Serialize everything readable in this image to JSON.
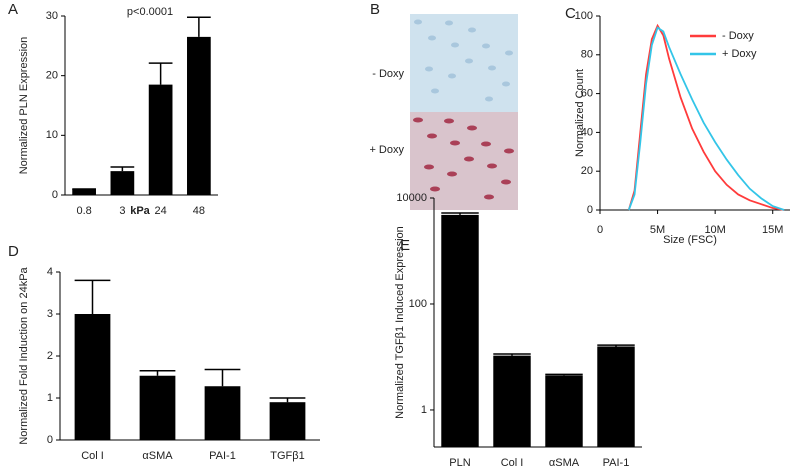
{
  "chart_data": [
    {
      "type": "bar",
      "label": "A",
      "annotation": "p<0.0001",
      "ylabel": "Normalized PLN Expression",
      "xlabel": "kPa",
      "categories": [
        "0.8",
        "3",
        "24",
        "48"
      ],
      "values": [
        1,
        4,
        18.5,
        26.5
      ],
      "errors": [
        0,
        0.7,
        3.6,
        3.3
      ],
      "color": "#000000",
      "ylim": [
        0,
        30
      ],
      "yticks": [
        0,
        10,
        20,
        30
      ]
    },
    {
      "type": "image",
      "label": "B",
      "rows": [
        "- Doxy",
        "+ Doxy"
      ]
    },
    {
      "type": "line",
      "label": "C",
      "xlabel": "Size (FSC)",
      "ylabel": "Normalized Count",
      "x": [
        2500000,
        3000000,
        3500000,
        4000000,
        4500000,
        5000000,
        5500000,
        6000000,
        7000000,
        8000000,
        9000000,
        10000000,
        11000000,
        12000000,
        13000000,
        14000000,
        15000000,
        16000000
      ],
      "series": [
        {
          "name": "- Doxy",
          "color": "#ff3b3b",
          "values": [
            0,
            10,
            40,
            70,
            88,
            95,
            90,
            78,
            58,
            42,
            30,
            20,
            13,
            8,
            5,
            3,
            1,
            0
          ]
        },
        {
          "name": "+ Doxy",
          "color": "#33c5e8",
          "values": [
            0,
            8,
            35,
            65,
            85,
            94,
            92,
            84,
            70,
            57,
            45,
            35,
            26,
            18,
            11,
            6,
            2,
            0
          ]
        }
      ],
      "xlim": [
        0,
        16500000
      ],
      "xticks": [
        0,
        {
          "value": 5000000,
          "label": "5M"
        },
        {
          "value": 10000000,
          "label": "10M"
        },
        {
          "value": 15000000,
          "label": "15M"
        }
      ],
      "ylim": [
        0,
        100
      ],
      "yticks": [
        0,
        20,
        40,
        60,
        80,
        100
      ],
      "legend": "upper-right"
    },
    {
      "type": "bar",
      "label": "D",
      "ylabel": "Normalized Fold Induction on 24kPa",
      "categories": [
        "Col I",
        "αSMA",
        "PAI-1",
        "TGFβ1"
      ],
      "values": [
        3.0,
        1.53,
        1.28,
        0.9
      ],
      "errors": [
        0.8,
        0.12,
        0.4,
        0.1
      ],
      "color": "#000000",
      "ylim": [
        0,
        4
      ],
      "yticks": [
        0,
        1,
        2,
        3,
        4
      ]
    },
    {
      "type": "bar",
      "label": "E",
      "ylabel": "Normalized TGFβ1 Induced Expression",
      "log_scale": true,
      "categories": [
        "PLN",
        "Col I",
        "αSMA",
        "PAI-1"
      ],
      "values": [
        4800,
        10.6,
        4.5,
        15.8
      ],
      "errors": [
        400,
        0.8,
        0.2,
        0.9
      ],
      "color": "#000000",
      "ylim": [
        0.2,
        10000
      ],
      "yticks": [
        1,
        100,
        10000
      ]
    }
  ]
}
